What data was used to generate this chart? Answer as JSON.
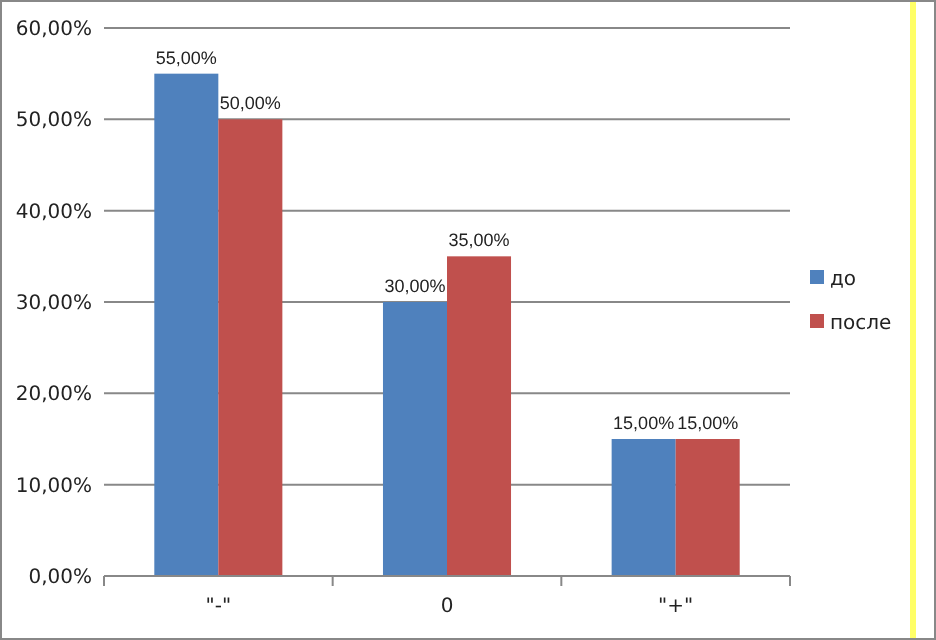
{
  "chart_data": {
    "type": "bar",
    "categories": [
      "\"-\"",
      "0",
      "\"+\""
    ],
    "series": [
      {
        "name": "до",
        "color": "#4f81bd",
        "values": [
          55,
          30,
          15
        ],
        "value_labels": [
          "55,00%",
          "30,00%",
          "15,00%"
        ]
      },
      {
        "name": "после",
        "color": "#c0504d",
        "values": [
          50,
          35,
          15
        ],
        "value_labels": [
          "50,00%",
          "35,00%",
          "15,00%"
        ]
      }
    ],
    "ylim": [
      0,
      60
    ],
    "yticks": [
      {
        "value": 0,
        "label": "0,00%"
      },
      {
        "value": 10,
        "label": "10,00%"
      },
      {
        "value": 20,
        "label": "20,00%"
      },
      {
        "value": 30,
        "label": "30,00%"
      },
      {
        "value": 40,
        "label": "40,00%"
      },
      {
        "value": 50,
        "label": "50,00%"
      },
      {
        "value": 60,
        "label": "60,00%"
      }
    ],
    "grid": "y",
    "legend": "right"
  }
}
